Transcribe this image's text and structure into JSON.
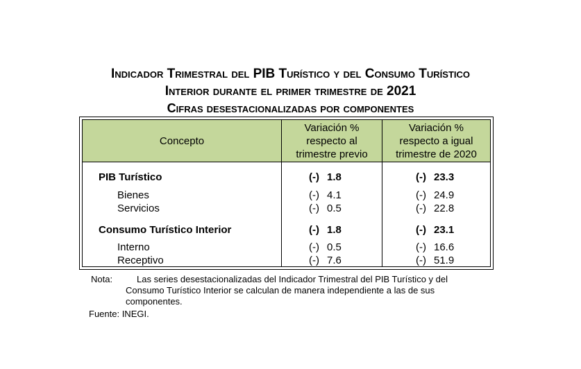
{
  "title": {
    "line1": "Indicador Trimestral del PIB Turístico y del Consumo Turístico",
    "line2": "Interior durante el primer trimestre de 2021",
    "line3": "Cifras desestacionalizadas por componentes"
  },
  "table": {
    "headers": {
      "concept": "Concepto",
      "col2": [
        "Variación %",
        "respecto al",
        "trimestre previo"
      ],
      "col3": [
        "Variación %",
        "respecto a igual",
        "trimestre de 2020"
      ]
    },
    "rows": [
      {
        "label": "PIB Turístico",
        "c2_sign": "(-)",
        "c2_val": "1.8",
        "c3_sign": "(-)",
        "c3_val": "23.3"
      },
      {
        "label": "Bienes",
        "c2_sign": "(-)",
        "c2_val": "4.1",
        "c3_sign": "(-)",
        "c3_val": "24.9"
      },
      {
        "label": "Servicios",
        "c2_sign": "(-)",
        "c2_val": "0.5",
        "c3_sign": "(-)",
        "c3_val": "22.8"
      },
      {
        "label": "Consumo Turístico Interior",
        "c2_sign": "(-)",
        "c2_val": "1.8",
        "c3_sign": "(-)",
        "c3_val": "23.1"
      },
      {
        "label": "Interno",
        "c2_sign": "(-)",
        "c2_val": "0.5",
        "c3_sign": "(-)",
        "c3_val": "16.6"
      },
      {
        "label": "Receptivo",
        "c2_sign": "(-)",
        "c2_val": "7.6",
        "c3_sign": "(-)",
        "c3_val": "51.9"
      }
    ]
  },
  "note": {
    "label": "Nota:",
    "lines": [
      "Las series desestacionalizadas del Indicador Trimestral del PIB Turístico y del",
      "Consumo Turístico Interior se calculan de manera independiente a las de sus",
      "componentes."
    ],
    "source": "Fuente: INEGI."
  }
}
